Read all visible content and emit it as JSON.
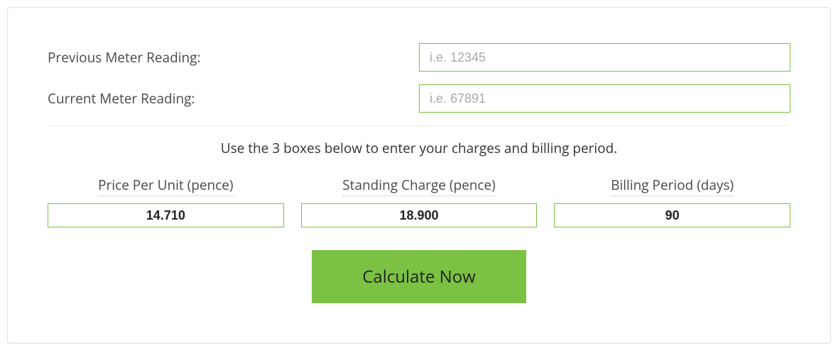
{
  "colors": {
    "accent": "#7bc143",
    "border": "#e0e0e0",
    "text": "#4a4a4a",
    "placeholder": "#aaaaaa",
    "background": "#ffffff"
  },
  "meter": {
    "previous_label": "Previous Meter Reading:",
    "previous_placeholder": "i.e. 12345",
    "previous_value": "",
    "current_label": "Current Meter Reading:",
    "current_placeholder": "i.e. 67891",
    "current_value": ""
  },
  "instruction": "Use the 3 boxes below to enter your charges and billing period.",
  "charges": {
    "price_per_unit_label": "Price Per Unit (pence)",
    "price_per_unit_value": "14.710",
    "standing_charge_label": "Standing Charge (pence)",
    "standing_charge_value": "18.900",
    "billing_period_label": "Billing Period (days)",
    "billing_period_value": "90"
  },
  "button": {
    "calculate_label": "Calculate Now"
  }
}
